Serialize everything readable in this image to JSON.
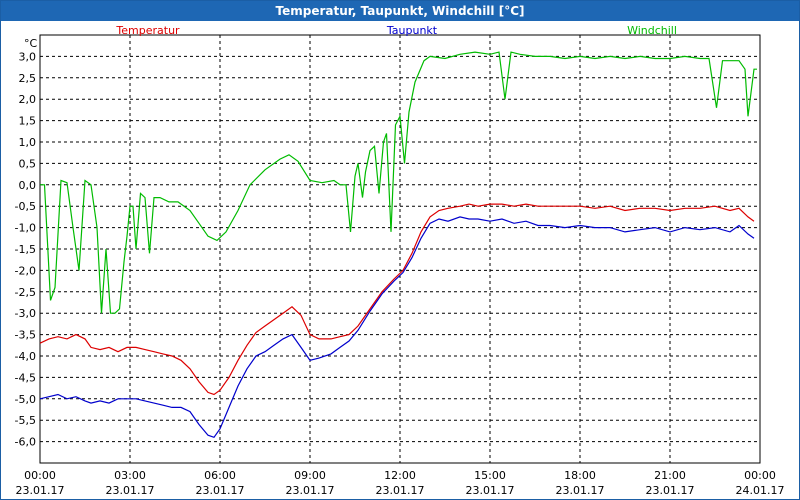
{
  "window": {
    "title": "Temperatur, Taupunkt, Windchill [°C]"
  },
  "chart_data": {
    "type": "line",
    "unit_label": "°C",
    "ylim": [
      -6.5,
      3.5
    ],
    "yticks": [
      3.0,
      2.5,
      2.0,
      1.5,
      1.0,
      0.5,
      0.0,
      -0.5,
      -1.0,
      -1.5,
      -2.0,
      -2.5,
      -3.0,
      -3.5,
      -4.0,
      -4.5,
      -5.0,
      -5.5,
      -6.0
    ],
    "ytick_labels": [
      "3,0",
      "2,5",
      "2,0",
      "1,5",
      "1,0",
      "0,5",
      "0,0",
      "-0,5",
      "-1,0",
      "-1,5",
      "-2,0",
      "-2,5",
      "-3,0",
      "-3,5",
      "-4,0",
      "-4,5",
      "-5,0",
      "-5,5",
      "-6,0"
    ],
    "xlim": [
      0,
      24
    ],
    "xticks": [
      0,
      3,
      6,
      9,
      12,
      15,
      18,
      21,
      24
    ],
    "xtick_time_labels": [
      "00:00",
      "03:00",
      "06:00",
      "09:00",
      "12:00",
      "15:00",
      "18:00",
      "21:00",
      "00:00"
    ],
    "xtick_date_labels": [
      "23.01.17",
      "23.01.17",
      "23.01.17",
      "23.01.17",
      "23.01.17",
      "23.01.17",
      "23.01.17",
      "23.01.17",
      "24.01.17"
    ],
    "grid": true,
    "legend_placement": "top",
    "series": [
      {
        "name": "Temperatur",
        "color": "#dd0000",
        "points": [
          [
            0,
            -3.7
          ],
          [
            0.3,
            -3.6
          ],
          [
            0.6,
            -3.55
          ],
          [
            0.9,
            -3.6
          ],
          [
            1.2,
            -3.5
          ],
          [
            1.5,
            -3.6
          ],
          [
            1.7,
            -3.8
          ],
          [
            2.0,
            -3.85
          ],
          [
            2.3,
            -3.8
          ],
          [
            2.6,
            -3.9
          ],
          [
            2.9,
            -3.8
          ],
          [
            3.2,
            -3.8
          ],
          [
            3.5,
            -3.85
          ],
          [
            3.8,
            -3.9
          ],
          [
            4.1,
            -3.95
          ],
          [
            4.4,
            -4.0
          ],
          [
            4.7,
            -4.1
          ],
          [
            5.0,
            -4.3
          ],
          [
            5.3,
            -4.6
          ],
          [
            5.6,
            -4.85
          ],
          [
            5.8,
            -4.9
          ],
          [
            6.0,
            -4.8
          ],
          [
            6.3,
            -4.5
          ],
          [
            6.6,
            -4.1
          ],
          [
            6.9,
            -3.75
          ],
          [
            7.2,
            -3.45
          ],
          [
            7.5,
            -3.3
          ],
          [
            7.8,
            -3.15
          ],
          [
            8.1,
            -3.0
          ],
          [
            8.4,
            -2.85
          ],
          [
            8.7,
            -3.05
          ],
          [
            9.0,
            -3.5
          ],
          [
            9.3,
            -3.6
          ],
          [
            9.7,
            -3.6
          ],
          [
            10.0,
            -3.55
          ],
          [
            10.3,
            -3.5
          ],
          [
            10.6,
            -3.3
          ],
          [
            11.0,
            -2.9
          ],
          [
            11.4,
            -2.5
          ],
          [
            11.8,
            -2.2
          ],
          [
            12.1,
            -2.0
          ],
          [
            12.4,
            -1.6
          ],
          [
            12.7,
            -1.1
          ],
          [
            13.0,
            -0.75
          ],
          [
            13.3,
            -0.6
          ],
          [
            13.6,
            -0.55
          ],
          [
            14.0,
            -0.5
          ],
          [
            14.3,
            -0.45
          ],
          [
            14.6,
            -0.5
          ],
          [
            15.0,
            -0.45
          ],
          [
            15.4,
            -0.45
          ],
          [
            15.8,
            -0.5
          ],
          [
            16.2,
            -0.45
          ],
          [
            16.6,
            -0.5
          ],
          [
            17.0,
            -0.5
          ],
          [
            17.5,
            -0.5
          ],
          [
            18.0,
            -0.5
          ],
          [
            18.5,
            -0.55
          ],
          [
            19.0,
            -0.5
          ],
          [
            19.5,
            -0.6
          ],
          [
            20.0,
            -0.55
          ],
          [
            20.5,
            -0.55
          ],
          [
            21.0,
            -0.6
          ],
          [
            21.5,
            -0.55
          ],
          [
            22.0,
            -0.55
          ],
          [
            22.5,
            -0.5
          ],
          [
            23.0,
            -0.6
          ],
          [
            23.3,
            -0.55
          ],
          [
            23.6,
            -0.75
          ],
          [
            23.8,
            -0.85
          ]
        ]
      },
      {
        "name": "Taupunkt",
        "color": "#0000cc",
        "points": [
          [
            0,
            -5.0
          ],
          [
            0.3,
            -4.95
          ],
          [
            0.6,
            -4.9
          ],
          [
            0.9,
            -5.0
          ],
          [
            1.2,
            -4.95
          ],
          [
            1.5,
            -5.05
          ],
          [
            1.7,
            -5.1
          ],
          [
            2.0,
            -5.05
          ],
          [
            2.3,
            -5.1
          ],
          [
            2.6,
            -5.0
          ],
          [
            2.9,
            -5.0
          ],
          [
            3.2,
            -5.0
          ],
          [
            3.5,
            -5.05
          ],
          [
            3.8,
            -5.1
          ],
          [
            4.1,
            -5.15
          ],
          [
            4.4,
            -5.2
          ],
          [
            4.7,
            -5.2
          ],
          [
            5.0,
            -5.3
          ],
          [
            5.3,
            -5.6
          ],
          [
            5.6,
            -5.85
          ],
          [
            5.8,
            -5.9
          ],
          [
            6.0,
            -5.7
          ],
          [
            6.3,
            -5.2
          ],
          [
            6.6,
            -4.7
          ],
          [
            6.9,
            -4.3
          ],
          [
            7.2,
            -4.0
          ],
          [
            7.5,
            -3.9
          ],
          [
            7.8,
            -3.75
          ],
          [
            8.1,
            -3.6
          ],
          [
            8.4,
            -3.5
          ],
          [
            8.7,
            -3.8
          ],
          [
            9.0,
            -4.1
          ],
          [
            9.3,
            -4.05
          ],
          [
            9.7,
            -3.95
          ],
          [
            10.0,
            -3.8
          ],
          [
            10.3,
            -3.65
          ],
          [
            10.6,
            -3.4
          ],
          [
            11.0,
            -2.95
          ],
          [
            11.4,
            -2.55
          ],
          [
            11.8,
            -2.25
          ],
          [
            12.1,
            -2.05
          ],
          [
            12.4,
            -1.7
          ],
          [
            12.7,
            -1.25
          ],
          [
            13.0,
            -0.9
          ],
          [
            13.3,
            -0.8
          ],
          [
            13.6,
            -0.85
          ],
          [
            14.0,
            -0.75
          ],
          [
            14.3,
            -0.8
          ],
          [
            14.6,
            -0.8
          ],
          [
            15.0,
            -0.85
          ],
          [
            15.4,
            -0.8
          ],
          [
            15.8,
            -0.9
          ],
          [
            16.2,
            -0.85
          ],
          [
            16.6,
            -0.95
          ],
          [
            17.0,
            -0.95
          ],
          [
            17.5,
            -1.0
          ],
          [
            18.0,
            -0.95
          ],
          [
            18.5,
            -1.0
          ],
          [
            19.0,
            -1.0
          ],
          [
            19.5,
            -1.1
          ],
          [
            20.0,
            -1.05
          ],
          [
            20.5,
            -1.0
          ],
          [
            21.0,
            -1.1
          ],
          [
            21.5,
            -1.0
          ],
          [
            22.0,
            -1.05
          ],
          [
            22.5,
            -1.0
          ],
          [
            23.0,
            -1.1
          ],
          [
            23.3,
            -0.95
          ],
          [
            23.6,
            -1.15
          ],
          [
            23.8,
            -1.25
          ]
        ]
      },
      {
        "name": "Windchill",
        "color": "#00bb00",
        "points": [
          [
            0,
            0.0
          ],
          [
            0.15,
            0.0
          ],
          [
            0.35,
            -2.7
          ],
          [
            0.5,
            -2.4
          ],
          [
            0.7,
            0.1
          ],
          [
            0.9,
            0.05
          ],
          [
            1.1,
            -1.0
          ],
          [
            1.3,
            -2.0
          ],
          [
            1.5,
            0.1
          ],
          [
            1.7,
            0.0
          ],
          [
            1.9,
            -1.0
          ],
          [
            2.05,
            -3.0
          ],
          [
            2.2,
            -1.5
          ],
          [
            2.35,
            -3.0
          ],
          [
            2.5,
            -3.0
          ],
          [
            2.65,
            -2.9
          ],
          [
            2.8,
            -1.8
          ],
          [
            2.9,
            -1.2
          ],
          [
            3.0,
            -0.5
          ],
          [
            3.1,
            -0.5
          ],
          [
            3.2,
            -1.5
          ],
          [
            3.35,
            -0.2
          ],
          [
            3.5,
            -0.3
          ],
          [
            3.65,
            -1.6
          ],
          [
            3.8,
            -0.3
          ],
          [
            4.0,
            -0.3
          ],
          [
            4.3,
            -0.4
          ],
          [
            4.6,
            -0.4
          ],
          [
            5.0,
            -0.6
          ],
          [
            5.3,
            -0.9
          ],
          [
            5.6,
            -1.2
          ],
          [
            5.9,
            -1.3
          ],
          [
            6.2,
            -1.1
          ],
          [
            6.6,
            -0.6
          ],
          [
            7.0,
            0.0
          ],
          [
            7.5,
            0.35
          ],
          [
            8.0,
            0.6
          ],
          [
            8.3,
            0.7
          ],
          [
            8.6,
            0.55
          ],
          [
            9.0,
            0.1
          ],
          [
            9.4,
            0.05
          ],
          [
            9.8,
            0.1
          ],
          [
            10.0,
            0.0
          ],
          [
            10.2,
            0.0
          ],
          [
            10.35,
            -1.1
          ],
          [
            10.5,
            0.2
          ],
          [
            10.6,
            0.5
          ],
          [
            10.75,
            -0.3
          ],
          [
            10.85,
            0.3
          ],
          [
            11.0,
            0.8
          ],
          [
            11.15,
            0.9
          ],
          [
            11.3,
            -0.2
          ],
          [
            11.45,
            1.0
          ],
          [
            11.55,
            1.2
          ],
          [
            11.7,
            -1.1
          ],
          [
            11.85,
            1.4
          ],
          [
            12.0,
            1.6
          ],
          [
            12.15,
            0.5
          ],
          [
            12.3,
            1.7
          ],
          [
            12.5,
            2.4
          ],
          [
            12.8,
            2.9
          ],
          [
            13.0,
            3.0
          ],
          [
            13.5,
            2.95
          ],
          [
            14.0,
            3.05
          ],
          [
            14.5,
            3.1
          ],
          [
            15.0,
            3.05
          ],
          [
            15.3,
            3.1
          ],
          [
            15.5,
            2.0
          ],
          [
            15.7,
            3.1
          ],
          [
            16.0,
            3.05
          ],
          [
            16.5,
            3.0
          ],
          [
            17.0,
            3.0
          ],
          [
            17.5,
            2.95
          ],
          [
            18.0,
            3.0
          ],
          [
            18.5,
            2.95
          ],
          [
            19.0,
            3.0
          ],
          [
            19.5,
            2.95
          ],
          [
            20.0,
            3.0
          ],
          [
            20.5,
            2.95
          ],
          [
            21.0,
            2.95
          ],
          [
            21.5,
            3.0
          ],
          [
            22.0,
            2.95
          ],
          [
            22.3,
            2.95
          ],
          [
            22.55,
            1.8
          ],
          [
            22.75,
            2.9
          ],
          [
            23.0,
            2.9
          ],
          [
            23.3,
            2.9
          ],
          [
            23.5,
            2.7
          ],
          [
            23.6,
            1.6
          ],
          [
            23.8,
            2.7
          ],
          [
            23.9,
            2.7
          ]
        ]
      }
    ]
  }
}
